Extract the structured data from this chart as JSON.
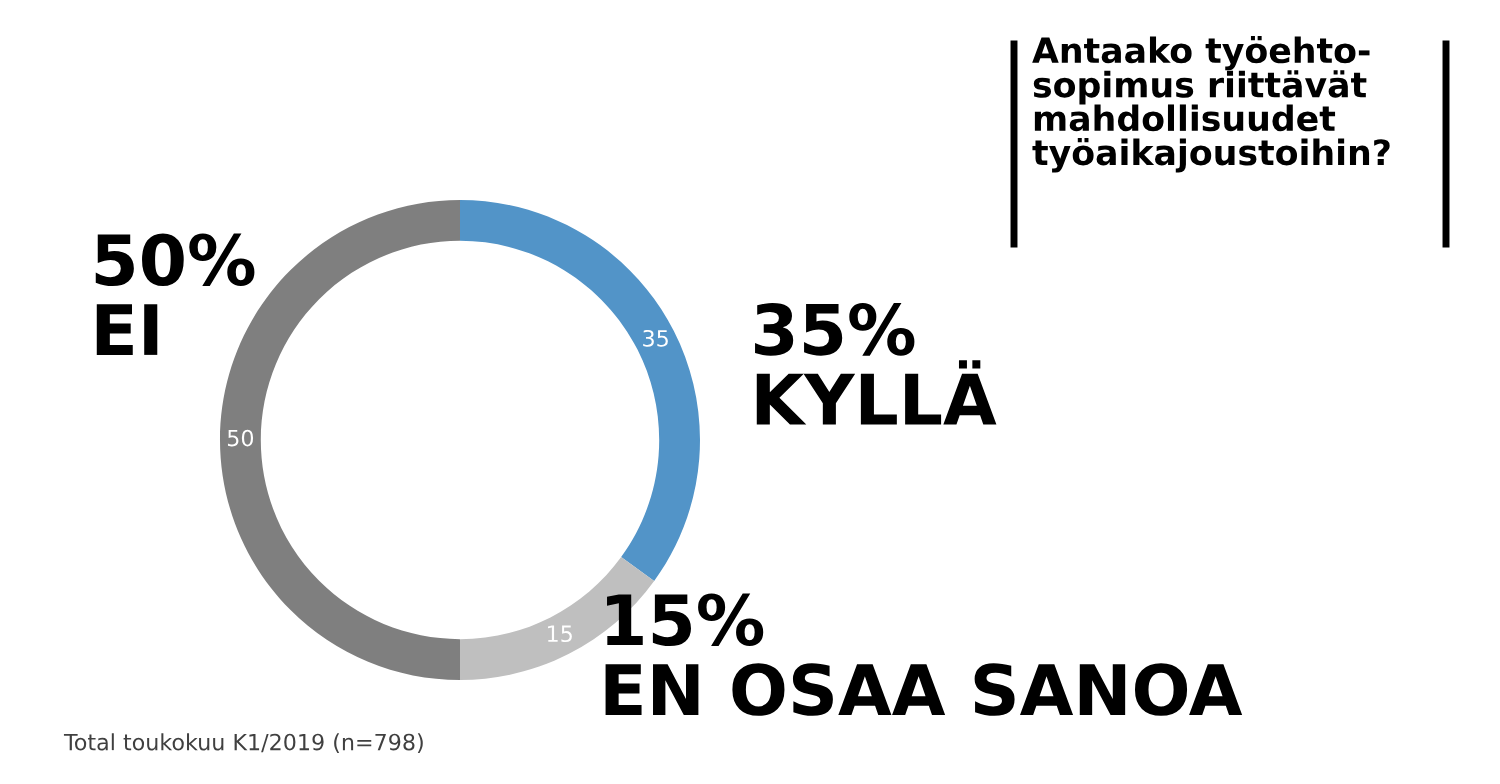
{
  "chart_data": {
    "type": "donut",
    "title": "Antaako työehto-\nsopimus riittävät\nmahdollisuudet\ntyöaikajoustoihin?",
    "categories": [
      "KYLLÄ",
      "EN OSAA SANOA",
      "EI"
    ],
    "values": [
      35,
      15,
      50
    ],
    "colors": [
      "#5294c8",
      "#bfbfbf",
      "#7f7f7f"
    ],
    "value_labels": [
      "35",
      "15",
      "50"
    ],
    "legend": false,
    "annotations": [
      {
        "text": "35%",
        "x": "KYLLÄ"
      },
      {
        "text": "15%",
        "x": "EN OSAA SANOA"
      },
      {
        "text": "50%",
        "x": "EI"
      },
      "Total toukokuu K1/2019 (n=798)"
    ]
  }
}
